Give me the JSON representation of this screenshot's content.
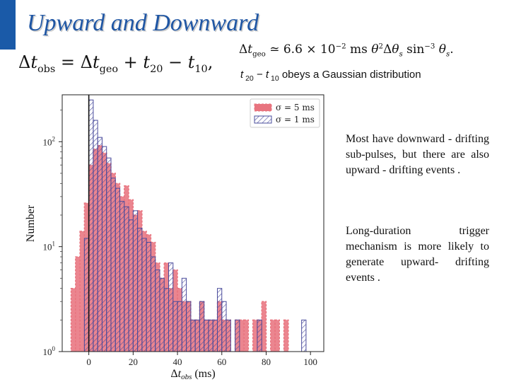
{
  "slide": {
    "title": "Upward and Downward",
    "accent_color": "#1a5aa8",
    "title_color": "#1f56a4"
  },
  "equations": {
    "eq1": "Δt_obs = Δt_geo + t_20 − t_10,",
    "eq2": "Δt_geo ≃ 6.6 × 10^−2 ms θ²Δθ_s sin^−3 θ_s.",
    "gaussian_note": "t20 − t10 obeys a Gaussian distribution"
  },
  "notes": {
    "note1": "Most have downward - drifting sub-pulses, but there are also upward - drifting events .",
    "note2": "Long-duration trigger mechanism is more likely to generate upward- drifting events ."
  },
  "chart_data": {
    "type": "bar",
    "subtype": "histogram-step",
    "xlabel": "Δtobs (ms)",
    "ylabel": "Number",
    "yscale": "log",
    "xlim": [
      -12,
      106
    ],
    "ylim": [
      1,
      280
    ],
    "xticks": [
      0,
      20,
      40,
      60,
      80,
      100
    ],
    "yticks": [
      {
        "value": 1,
        "label": "10^0"
      },
      {
        "value": 10,
        "label": "10^1"
      },
      {
        "value": 100,
        "label": "10^2"
      }
    ],
    "vline_x": 0,
    "bin_width": 2,
    "legend": {
      "position": "top-right"
    },
    "series": [
      {
        "name": "σ = 5 ms",
        "color": "#e8747f",
        "edge": "#e8747f",
        "style": "filled-dashed",
        "bins": [
          [
            -8,
            4
          ],
          [
            -6,
            8
          ],
          [
            -4,
            14
          ],
          [
            -2,
            26
          ],
          [
            0,
            60
          ],
          [
            2,
            85
          ],
          [
            4,
            92
          ],
          [
            6,
            78
          ],
          [
            8,
            62
          ],
          [
            10,
            50
          ],
          [
            12,
            40
          ],
          [
            14,
            30
          ],
          [
            16,
            38
          ],
          [
            18,
            28
          ],
          [
            20,
            20
          ],
          [
            22,
            22
          ],
          [
            24,
            14
          ],
          [
            26,
            13
          ],
          [
            28,
            11
          ],
          [
            30,
            7
          ],
          [
            32,
            5
          ],
          [
            34,
            7
          ],
          [
            36,
            4
          ],
          [
            38,
            6
          ],
          [
            40,
            4
          ],
          [
            42,
            3
          ],
          [
            44,
            3
          ],
          [
            46,
            2
          ],
          [
            48,
            2
          ],
          [
            50,
            3
          ],
          [
            52,
            2
          ],
          [
            54,
            2
          ],
          [
            56,
            2
          ],
          [
            58,
            3
          ],
          [
            60,
            2
          ],
          [
            62,
            2
          ],
          [
            64,
            1
          ],
          [
            66,
            2
          ],
          [
            68,
            2
          ],
          [
            70,
            2
          ],
          [
            72,
            1
          ],
          [
            74,
            2
          ],
          [
            76,
            2
          ],
          [
            78,
            3
          ],
          [
            80,
            1
          ],
          [
            82,
            2
          ],
          [
            84,
            2
          ],
          [
            86,
            1
          ],
          [
            88,
            2
          ],
          [
            90,
            1
          ],
          [
            92,
            1
          ],
          [
            94,
            1
          ],
          [
            96,
            1
          ],
          [
            98,
            1
          ]
        ]
      },
      {
        "name": "σ = 1 ms",
        "color": "#4a4c9c",
        "edge": "#4a4c9c",
        "style": "hatched",
        "bins": [
          [
            -2,
            12
          ],
          [
            0,
            250
          ],
          [
            2,
            160
          ],
          [
            4,
            110
          ],
          [
            6,
            90
          ],
          [
            8,
            70
          ],
          [
            10,
            45
          ],
          [
            12,
            36
          ],
          [
            14,
            27
          ],
          [
            16,
            24
          ],
          [
            18,
            18
          ],
          [
            20,
            22
          ],
          [
            22,
            15
          ],
          [
            24,
            12
          ],
          [
            26,
            11
          ],
          [
            28,
            8
          ],
          [
            30,
            6
          ],
          [
            32,
            5
          ],
          [
            34,
            4
          ],
          [
            36,
            7
          ],
          [
            38,
            3
          ],
          [
            40,
            3
          ],
          [
            42,
            5
          ],
          [
            44,
            3
          ],
          [
            46,
            2
          ],
          [
            48,
            2
          ],
          [
            50,
            3
          ],
          [
            52,
            2
          ],
          [
            54,
            2
          ],
          [
            56,
            2
          ],
          [
            58,
            4
          ],
          [
            60,
            3
          ],
          [
            62,
            2
          ],
          [
            64,
            1
          ],
          [
            66,
            2
          ],
          [
            68,
            1
          ],
          [
            70,
            1
          ],
          [
            72,
            1
          ],
          [
            76,
            2
          ],
          [
            78,
            1
          ],
          [
            84,
            1
          ],
          [
            86,
            1
          ],
          [
            96,
            2
          ],
          [
            98,
            1
          ]
        ]
      }
    ]
  }
}
